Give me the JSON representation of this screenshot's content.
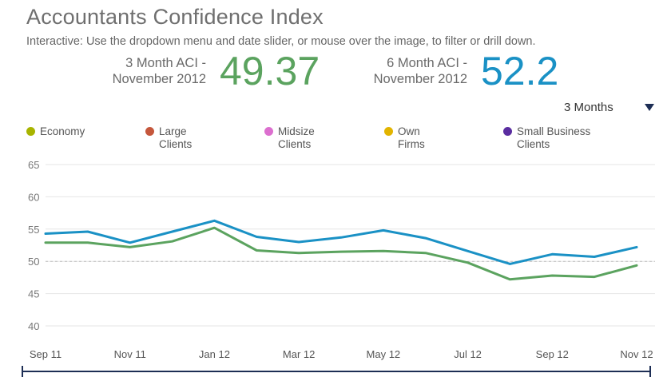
{
  "header": {
    "title": "Accountants Confidence Index",
    "subtitle": "Interactive: Use the dropdown menu and date slider, or mouse over the image, to filter or drill down."
  },
  "kpis": [
    {
      "label_line1": "3 Month ACI -",
      "label_line2": "November 2012",
      "value": "49.37",
      "color": "#5ba35f"
    },
    {
      "label_line1": "6 Month ACI -",
      "label_line2": "November 2012",
      "value": "52.2",
      "color": "#1a91c5"
    }
  ],
  "period_select": {
    "value": "3 Months"
  },
  "legend": [
    {
      "label": "Economy",
      "color": "#a8b400"
    },
    {
      "label": "Large Clients",
      "color": "#c5573c"
    },
    {
      "label": "Midsize Clients",
      "color": "#dc6fcf"
    },
    {
      "label": "Own Firms",
      "color": "#e2b400"
    },
    {
      "label": "Small Business Clients",
      "color": "#5a2da0"
    }
  ],
  "chart_data": {
    "type": "line",
    "x": [
      "2011-09",
      "2011-10",
      "2011-11",
      "2011-12",
      "2012-01",
      "2012-02",
      "2012-03",
      "2012-04",
      "2012-05",
      "2012-06",
      "2012-07",
      "2012-08",
      "2012-09",
      "2012-10",
      "2012-11"
    ],
    "x_tick_labels": [
      "Sep 11",
      "Nov 11",
      "Jan 12",
      "Mar 12",
      "May 12",
      "Jul 12",
      "Sep 12",
      "Nov 12"
    ],
    "y_tick_labels": [
      "65",
      "60",
      "55",
      "50",
      "45",
      "40"
    ],
    "ylim": [
      40,
      65
    ],
    "reference_line": 50,
    "series": [
      {
        "name": "6 Month ACI",
        "color": "#1a91c5",
        "values": [
          54.3,
          54.6,
          52.9,
          54.6,
          56.3,
          53.8,
          53.0,
          53.7,
          54.8,
          53.6,
          51.6,
          49.6,
          51.1,
          50.7,
          52.2
        ]
      },
      {
        "name": "3 Month ACI",
        "color": "#5ba35f",
        "values": [
          52.9,
          52.9,
          52.2,
          53.1,
          55.2,
          51.7,
          51.3,
          51.5,
          51.6,
          51.3,
          49.8,
          47.2,
          47.8,
          47.6,
          49.37
        ]
      }
    ]
  }
}
